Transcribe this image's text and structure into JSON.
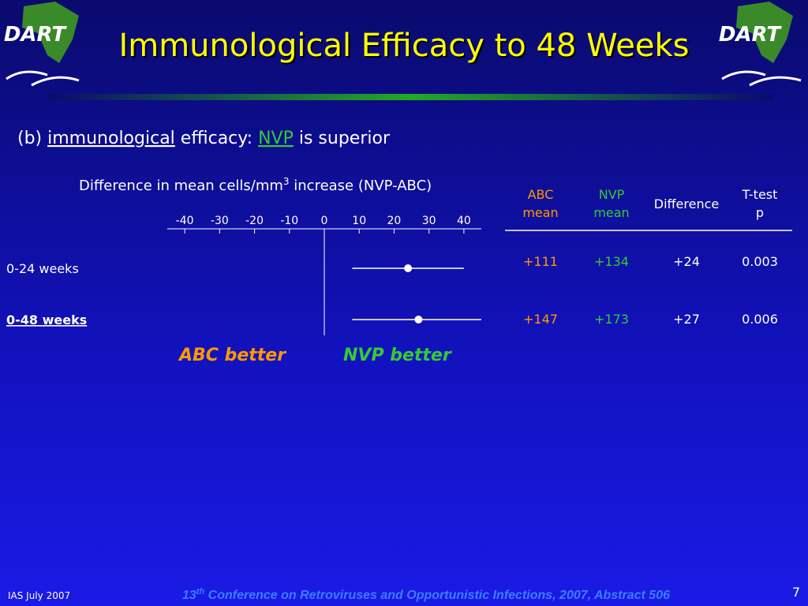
{
  "title": "Immunological Efficacy to 48 Weeks",
  "logo_text": "DART",
  "subtitle": [
    "(b) ",
    "immunological",
    " efficacy: ",
    "NVP",
    " is superior"
  ],
  "chart_data": {
    "type": "forest",
    "xlabel": [
      "Difference in mean cells/mm",
      "3",
      " increase (NVP-ABC)"
    ],
    "categories": [
      "0-24 weeks",
      "0-48 weeks"
    ],
    "values": [
      24,
      27
    ],
    "lower": [
      8,
      8
    ],
    "upper": [
      40,
      45
    ],
    "color": "#ffffff",
    "xlim": [
      -45,
      45
    ],
    "xticks": [
      -40,
      -30,
      -20,
      -10,
      0,
      10,
      20,
      30,
      40
    ],
    "annotations": [
      {
        "text": "ABC better",
        "color": "#ff9900"
      },
      {
        "text": "NVP better",
        "color": "#33cc33"
      }
    ]
  },
  "table": {
    "header": [
      [
        "ABC",
        "mean"
      ],
      [
        "NVP",
        "mean"
      ],
      [
        "Difference"
      ],
      [
        "T-test",
        "p"
      ]
    ],
    "header_colors": [
      "#ff9900",
      "#33cc33",
      "#ffffff",
      "#ffffff"
    ],
    "rows": [
      [
        "+111",
        "+134",
        "+24",
        "0.003"
      ],
      [
        "+147",
        "+173",
        "+27",
        "0.006"
      ]
    ]
  },
  "footer": {
    "left": "IAS July 2007",
    "center": [
      "13",
      "th",
      " Conference on Retroviruses and Opportunistic Infections, 2007, Abstract 506"
    ],
    "page": "7"
  }
}
